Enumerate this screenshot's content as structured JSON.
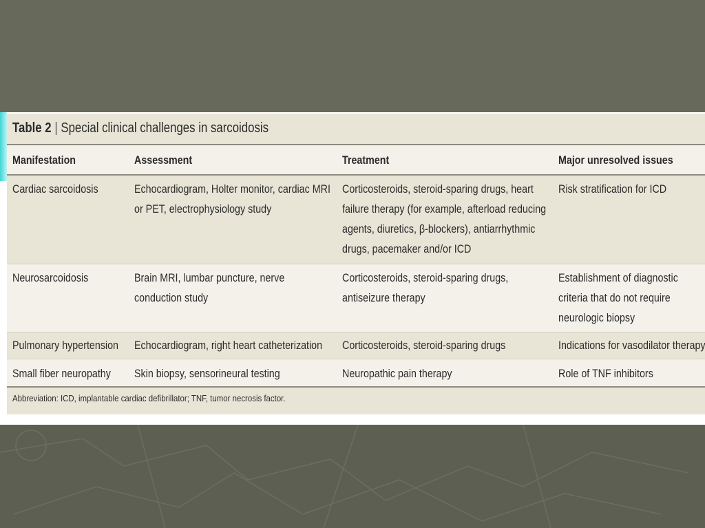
{
  "table": {
    "label": "Table 2",
    "separator": "|",
    "title": "Special clinical challenges in sarcoidosis",
    "columns": [
      "Manifestation",
      "Assessment",
      "Treatment",
      "Major unresolved issues"
    ],
    "rows": [
      [
        "Cardiac sarcoidosis",
        "Echocardiogram, Holter monitor, cardiac MRI or PET, electrophysiology study",
        "Corticosteroids, steroid-sparing drugs, heart failure therapy (for example, afterload reducing agents, diuretics, β-blockers), antiarrhythmic drugs, pacemaker and/or ICD",
        "Risk stratification for ICD"
      ],
      [
        "Neurosarcoidosis",
        "Brain MRI, lumbar puncture, nerve conduction study",
        "Corticosteroids, steroid-sparing drugs, antiseizure therapy",
        "Establishment of diagnostic criteria that do not require neurologic biopsy"
      ],
      [
        "Pulmonary hypertension",
        "Echocardiogram, right heart catheterization",
        "Corticosteroids, steroid-sparing drugs",
        "Indications for vasodilator therapy"
      ],
      [
        "Small fiber neuropathy",
        "Skin biopsy, sensorineural testing",
        "Neuropathic pain therapy",
        "Role of TNF inhibitors"
      ]
    ],
    "footnote": "Abbreviation: ICD, implantable cardiac defibrillator; TNF, tumor necrosis factor."
  },
  "colors": {
    "background": "#676a5b",
    "table_dark": "#e8e4d6",
    "table_light": "#f3f1ea",
    "accent": "#3fd6d6"
  }
}
